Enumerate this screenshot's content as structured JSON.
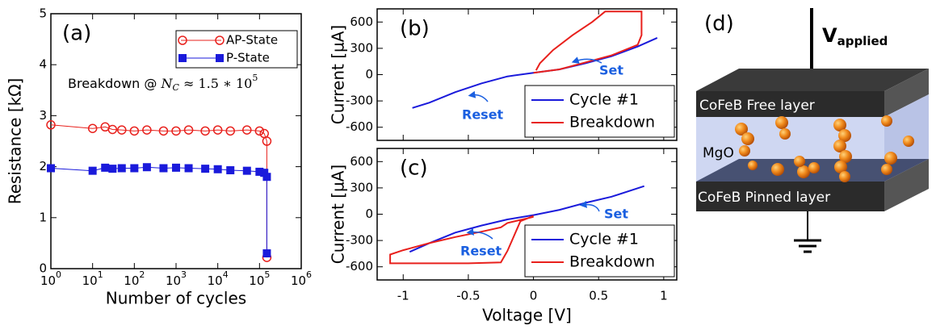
{
  "chart_data": [
    {
      "type": "scatter",
      "panel_label": "(a)",
      "x_label": "Number of cycles",
      "y_label": "Resistance [kΩ]",
      "x_scale": "log",
      "xlim": [
        1,
        1000000
      ],
      "xticks": [
        {
          "value": 1,
          "label": "10",
          "exponent": "0"
        },
        {
          "value": 10,
          "label": "10",
          "exponent": "1"
        },
        {
          "value": 100,
          "label": "10",
          "exponent": "2"
        },
        {
          "value": 1000,
          "label": "10",
          "exponent": "3"
        },
        {
          "value": 10000,
          "label": "10",
          "exponent": "4"
        },
        {
          "value": 100000,
          "label": "10",
          "exponent": "5"
        },
        {
          "value": 1000000,
          "label": "10",
          "exponent": "6"
        }
      ],
      "ylim": [
        0,
        5
      ],
      "yticks": [
        0,
        1,
        2,
        3,
        4,
        5
      ],
      "annotation": {
        "text": "Breakdown @ ",
        "symbol": "N",
        "subscript": "C",
        "relation": " ≈ 1.5 ∗ 10",
        "superscript": "5"
      },
      "legend": "upper right",
      "series": [
        {
          "name": "AP-State",
          "color": "#e8201c",
          "marker": "open-circle",
          "x": [
            1,
            10,
            20,
            30,
            50,
            100,
            200,
            500,
            1000,
            2000,
            5000,
            10000,
            20000,
            50000,
            100000,
            130000,
            150000,
            150000
          ],
          "values": [
            2.82,
            2.75,
            2.78,
            2.73,
            2.72,
            2.7,
            2.72,
            2.7,
            2.7,
            2.72,
            2.7,
            2.72,
            2.7,
            2.72,
            2.7,
            2.65,
            2.5,
            0.22
          ]
        },
        {
          "name": "P-State",
          "color": "#1a1adb",
          "marker": "filled-square",
          "x": [
            1,
            10,
            20,
            30,
            50,
            100,
            200,
            500,
            1000,
            2000,
            5000,
            10000,
            20000,
            50000,
            100000,
            130000,
            150000,
            150000
          ],
          "values": [
            1.97,
            1.92,
            1.98,
            1.96,
            1.97,
            1.97,
            1.99,
            1.97,
            1.98,
            1.97,
            1.96,
            1.95,
            1.93,
            1.92,
            1.9,
            1.88,
            1.8,
            0.3
          ]
        }
      ]
    },
    {
      "type": "line",
      "panel_label": "(b)",
      "y_label": "Current [µA]",
      "xlim": [
        -1.2,
        1.1
      ],
      "xticks": [
        -1,
        -0.5,
        0,
        0.5,
        1
      ],
      "ylim": [
        -750,
        750
      ],
      "yticks": [
        -600,
        -300,
        0,
        300,
        600
      ],
      "legend": "lower right",
      "annotations": [
        "Set",
        "Reset"
      ],
      "series": [
        {
          "name": "Cycle #1",
          "color": "#1a1adb",
          "x": [
            -0.93,
            -0.8,
            -0.6,
            -0.4,
            -0.2,
            0,
            0.2,
            0.4,
            0.6,
            0.8,
            0.95
          ],
          "values": [
            -380,
            -320,
            -200,
            -100,
            -20,
            20,
            60,
            130,
            210,
            320,
            420
          ]
        },
        {
          "name": "Breakdown",
          "color": "#e8201c",
          "x": [
            0,
            0.2,
            0.4,
            0.6,
            0.8,
            0.83,
            0.83,
            0.55,
            0.45,
            0.3,
            0.15,
            0.05,
            0.02
          ],
          "values": [
            20,
            60,
            140,
            220,
            340,
            450,
            720,
            720,
            600,
            450,
            280,
            130,
            50
          ]
        }
      ]
    },
    {
      "type": "line",
      "panel_label": "(c)",
      "y_label": "Current [µA]",
      "x_label": "Voltage [V]",
      "xlim": [
        -1.2,
        1.1
      ],
      "xticks": [
        -1,
        -0.5,
        0,
        0.5,
        1
      ],
      "ylim": [
        -750,
        750
      ],
      "yticks": [
        -600,
        -300,
        0,
        300,
        600
      ],
      "legend": "lower right",
      "annotations": [
        "Set",
        "Reset"
      ],
      "series": [
        {
          "name": "Cycle #1",
          "color": "#1a1adb",
          "x": [
            -0.95,
            -0.8,
            -0.6,
            -0.4,
            -0.2,
            0,
            0.2,
            0.4,
            0.6,
            0.85
          ],
          "values": [
            -430,
            -330,
            -210,
            -130,
            -60,
            -10,
            50,
            130,
            200,
            320
          ]
        },
        {
          "name": "Breakdown",
          "color": "#e8201c",
          "x": [
            0,
            -0.2,
            -0.25,
            -0.4,
            -0.6,
            -0.8,
            -1,
            -1.1,
            -1.1,
            -0.8,
            -0.5,
            -0.25,
            -0.2,
            -0.1,
            0
          ],
          "values": [
            -30,
            -100,
            -150,
            -200,
            -260,
            -330,
            -410,
            -460,
            -560,
            -560,
            -560,
            -550,
            -420,
            -80,
            -20
          ]
        }
      ]
    }
  ],
  "diagram": {
    "label": "(d)",
    "voltage": {
      "text": "V",
      "subscript": "applied"
    },
    "layers": [
      "CoFeB Free layer",
      "MgO",
      "CoFeB Pinned layer"
    ]
  }
}
